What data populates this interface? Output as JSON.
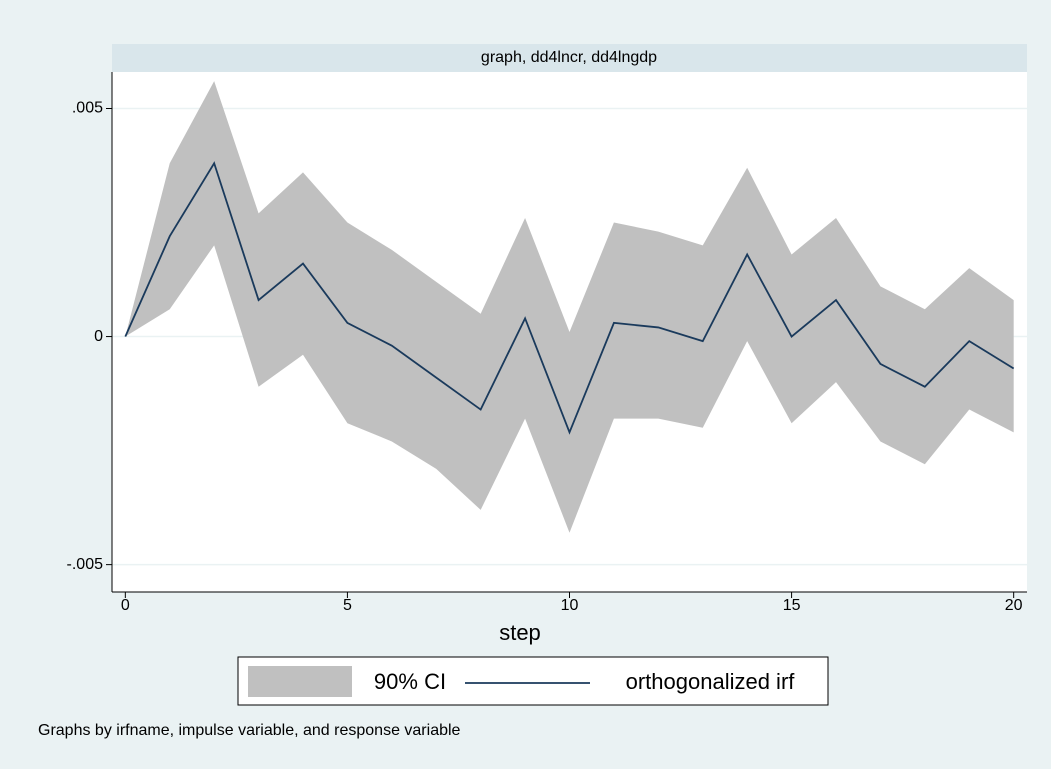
{
  "chart_data": {
    "type": "line",
    "title": "graph, dd4lncr, dd4lngdp",
    "x_label": "step",
    "note": "Graphs by irfname, impulse variable, and response variable",
    "x": [
      0,
      1,
      2,
      3,
      4,
      5,
      6,
      7,
      8,
      9,
      10,
      11,
      12,
      13,
      14,
      15,
      16,
      17,
      18,
      19,
      20
    ],
    "series": [
      {
        "name": "90% CI",
        "color": "#c0c0c0",
        "upper": [
          0,
          0.0038,
          0.0056,
          0.0027,
          0.0036,
          0.0025,
          0.0019,
          0.0012,
          0.0005,
          0.0026,
          0.0001,
          0.0025,
          0.0023,
          0.002,
          0.0037,
          0.0018,
          0.0026,
          0.0011,
          0.0006,
          0.0015,
          0.0008
        ],
        "lower": [
          0,
          0.0006,
          0.002,
          -0.0011,
          -0.0004,
          -0.0019,
          -0.0023,
          -0.0029,
          -0.0038,
          -0.0018,
          -0.0043,
          -0.0018,
          -0.0018,
          -0.002,
          -0.0001,
          -0.0019,
          -0.001,
          -0.0023,
          -0.0028,
          -0.0016,
          -0.0021
        ]
      },
      {
        "name": "orthogonalized irf",
        "color": "#1a3a5c",
        "values": [
          0,
          0.0022,
          0.0038,
          0.0008,
          0.0016,
          0.0003,
          -0.0002,
          -0.0009,
          -0.0016,
          0.0004,
          -0.0021,
          0.0003,
          0.0002,
          -0.0001,
          0.0018,
          0,
          0.0008,
          -0.0006,
          -0.0011,
          -0.0001,
          -0.0007
        ]
      }
    ],
    "xlim": [
      -0.3,
      20.3
    ],
    "ylim": [
      -0.0056,
      0.0058
    ],
    "xticks": [
      0,
      5,
      10,
      15,
      20
    ],
    "yticks": [
      {
        "value": 0.005,
        "label": ".005"
      },
      0,
      {
        "value": -0.005,
        "label": "-.005"
      }
    ],
    "grid": true
  }
}
